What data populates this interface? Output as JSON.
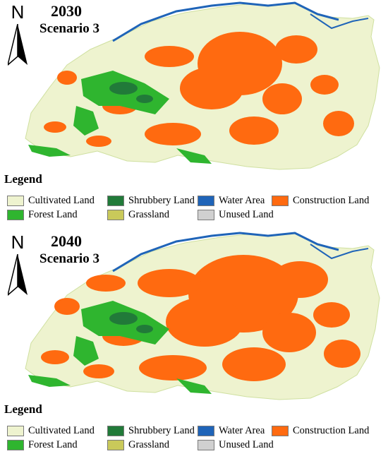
{
  "north_label": "N",
  "panels": [
    {
      "year": "2030",
      "scenario": "Scenario 3",
      "legend_title": "Legend"
    },
    {
      "year": "2040",
      "scenario": "Scenario 3",
      "legend_title": "Legend"
    }
  ],
  "legend": [
    {
      "label": "Cultivated Land",
      "color": "#eef3cf"
    },
    {
      "label": "Shrubbery Land",
      "color": "#217a39"
    },
    {
      "label": "Water Area",
      "color": "#1f64b8"
    },
    {
      "label": "Construction Land",
      "color": "#ff6a10"
    },
    {
      "label": "Forest Land",
      "color": "#2fb52f"
    },
    {
      "label": "Grassland",
      "color": "#c9c95a"
    },
    {
      "label": "Unused Land",
      "color": "#d0d0d0"
    }
  ]
}
